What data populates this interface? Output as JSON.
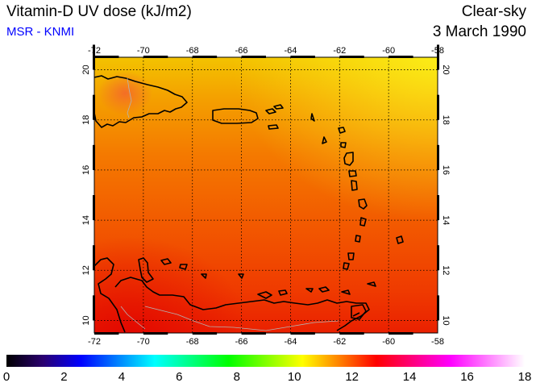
{
  "header": {
    "title": "Vitamin-D UV dose (kJ/m2)",
    "subtitle": "MSR - KNMI",
    "condition": "Clear-sky",
    "date": "3 March 1990"
  },
  "colors": {
    "subtitle": "#0000ff",
    "coast": "#000000",
    "borders": "#b4b4b4",
    "grid": "#000000"
  },
  "map": {
    "lon_range": [
      -72,
      -58
    ],
    "lat_range": [
      9.5,
      20.5
    ],
    "lon_ticks": [
      "-72",
      "-70",
      "-68",
      "-66",
      "-64",
      "-62",
      "-60",
      "-58"
    ],
    "lat_ticks": [
      "10",
      "12",
      "14",
      "16",
      "18",
      "20"
    ],
    "field_samples": [
      {
        "lat": 20,
        "value": 10.3
      },
      {
        "lat": 18,
        "value": 11.0
      },
      {
        "lat": 16,
        "value": 11.6
      },
      {
        "lat": 14,
        "value": 12.2
      },
      {
        "lat": 12,
        "value": 12.8
      },
      {
        "lat": 10,
        "value": 13.4
      }
    ]
  },
  "colorbar": {
    "min": 0,
    "max": 18,
    "labels": [
      "0",
      "2",
      "4",
      "6",
      "8",
      "10",
      "12",
      "14",
      "16",
      "18"
    ],
    "stops": [
      "#000000",
      "#2a0070",
      "#0000ff",
      "#0080ff",
      "#00ffff",
      "#00ff80",
      "#00ff00",
      "#80ff00",
      "#ffff00",
      "#ff8000",
      "#ff0000",
      "#ff0080",
      "#ff00ff",
      "#ff80ff",
      "#ffffff"
    ]
  }
}
